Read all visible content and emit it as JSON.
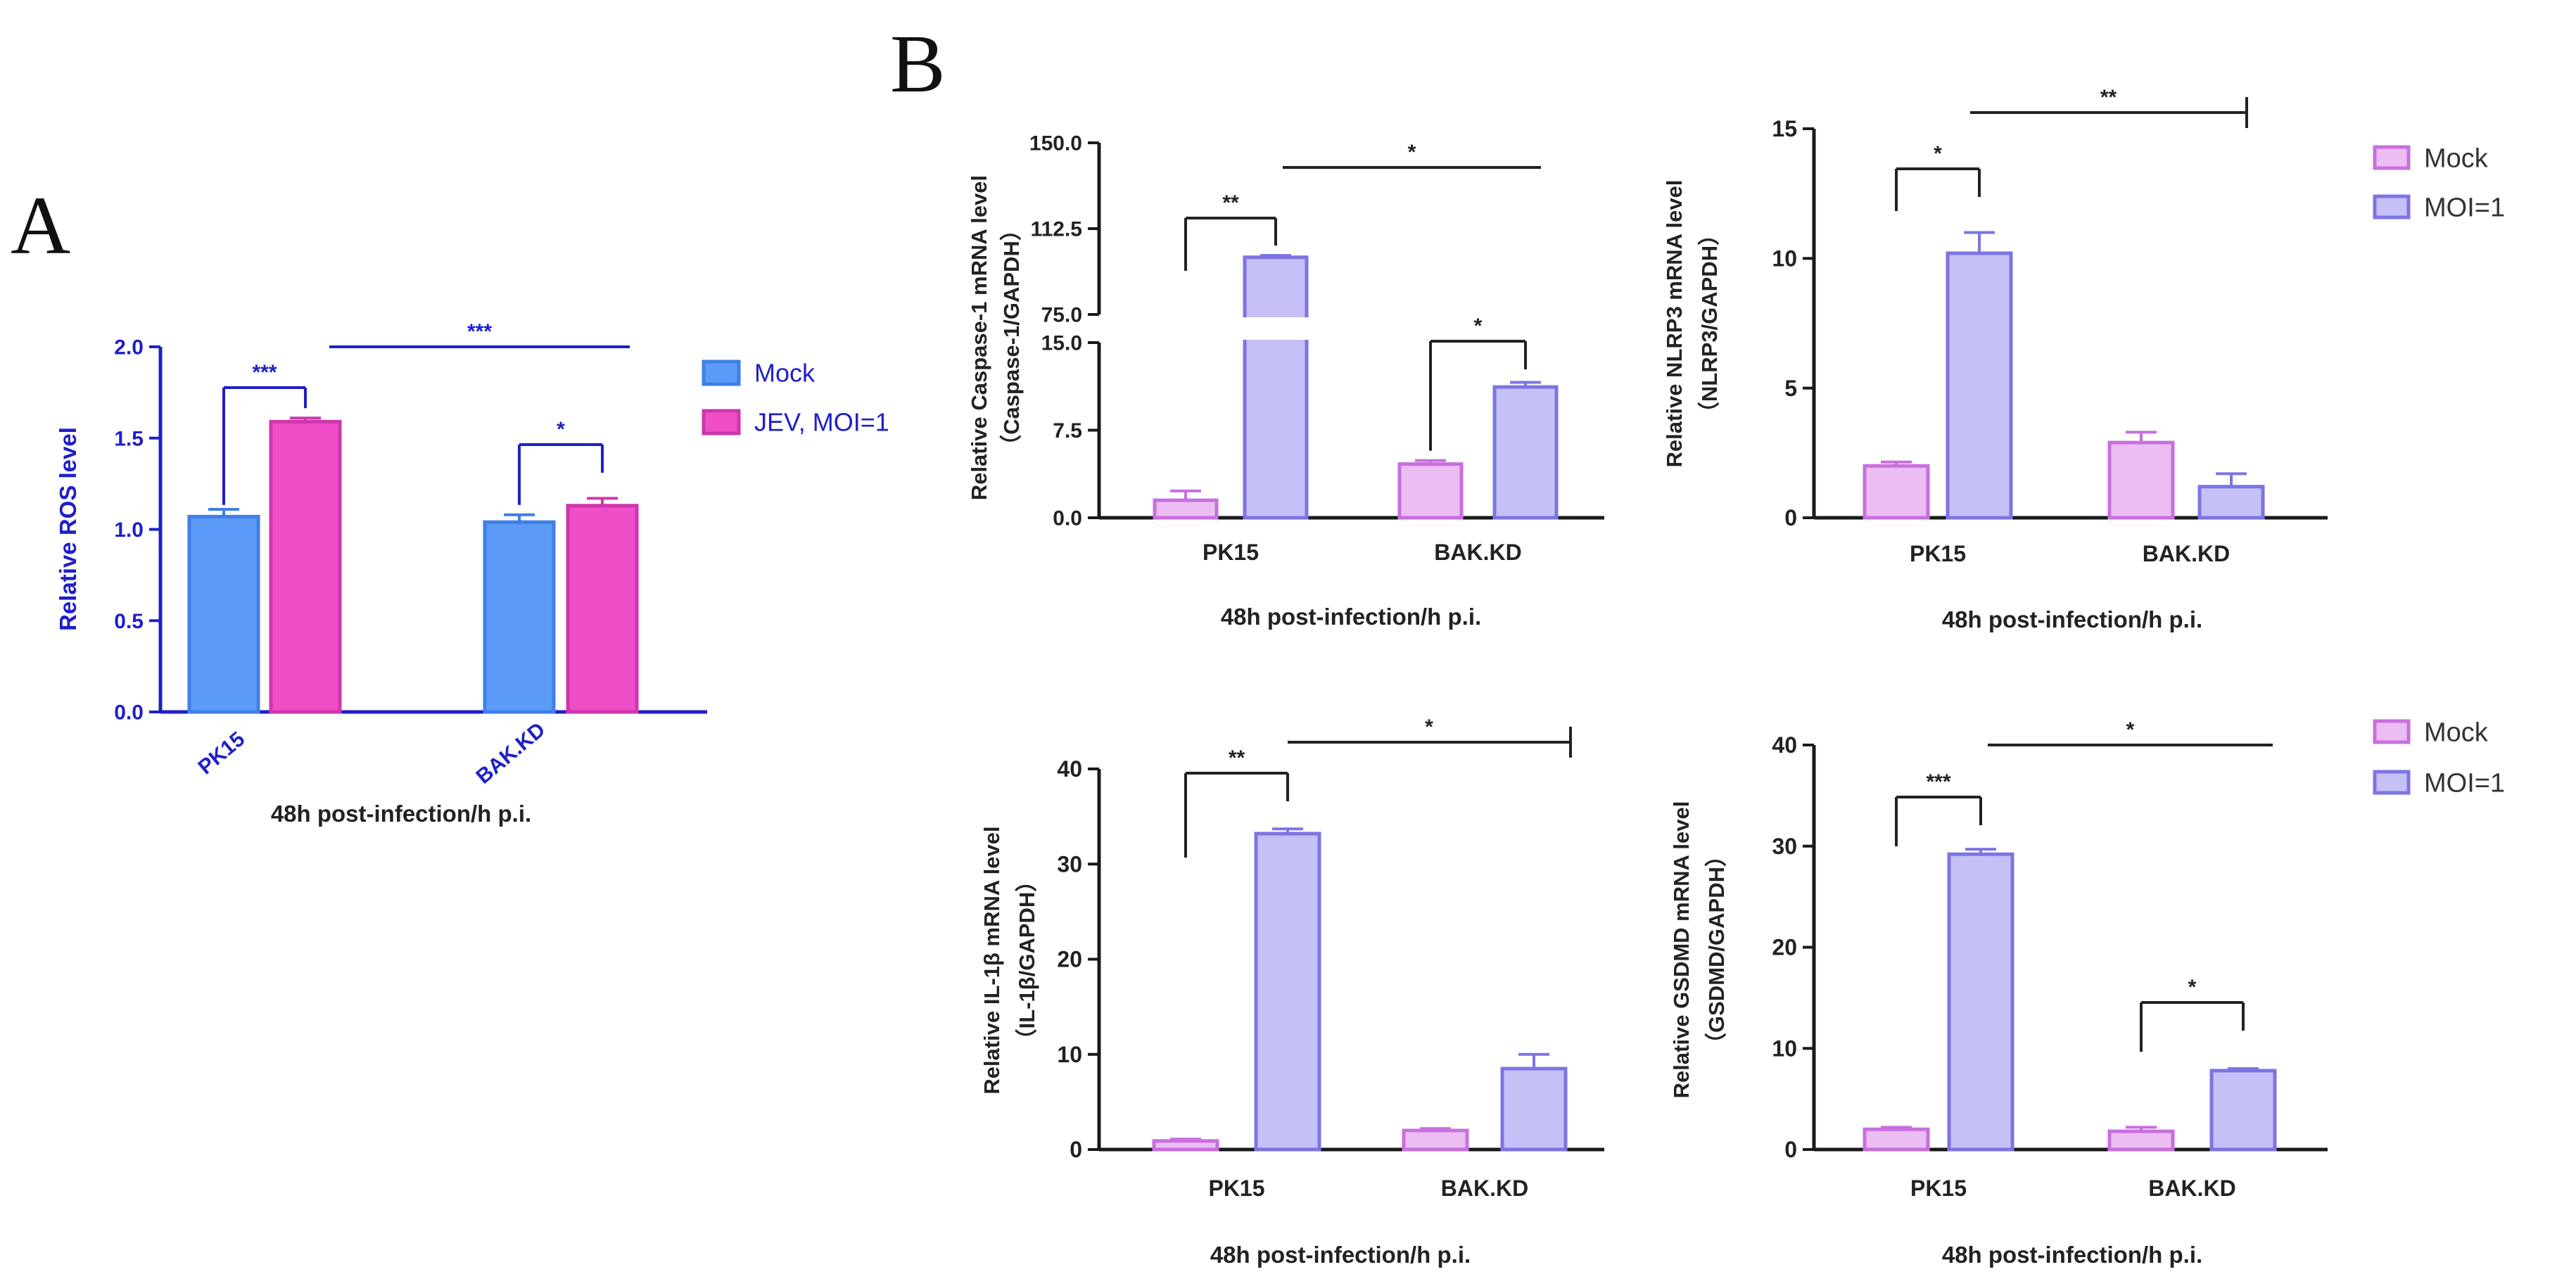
{
  "panel_letters": {
    "a": "A",
    "b": "B"
  },
  "colors": {
    "a_mock_fill": "#5b9bf7",
    "a_mock_stroke": "#3f7fe6",
    "a_jev_fill": "#f04dc9",
    "a_jev_stroke": "#cf36ac",
    "a_axis": "#1f1fc8",
    "b_mock_fill": "#ecbdf3",
    "b_mock_stroke": "#c86fde",
    "b_moi_fill": "#c5c0f6",
    "b_moi_stroke": "#7d74e3",
    "b_axis": "#1a1a1a"
  },
  "chart_data": [
    {
      "id": "ros",
      "type": "bar",
      "panel": "A",
      "categories": [
        "PK15",
        "BAK.KD"
      ],
      "series": [
        {
          "name": "Mock",
          "values": [
            1.07,
            1.04
          ],
          "errors": [
            0.04,
            0.04
          ]
        },
        {
          "name": "JEV, MOI=1",
          "values": [
            1.59,
            1.13
          ],
          "errors": [
            0.02,
            0.04
          ]
        }
      ],
      "ylabel": "Relative ROS level",
      "xlabel": "48h post-infection/h p.i.",
      "ylim": [
        0,
        2.0
      ],
      "yticks": [
        "0.0",
        "0.5",
        "1.0",
        "1.5",
        "2.0"
      ],
      "significance": [
        "***",
        "*",
        "***"
      ],
      "legend": [
        "Mock",
        "JEV, MOI=1"
      ]
    },
    {
      "id": "casp1",
      "type": "bar",
      "panel": "B",
      "categories": [
        "PK15",
        "BAK.KD"
      ],
      "series": [
        {
          "name": "Mock",
          "values": [
            1.5,
            4.6
          ],
          "errors": [
            0.8,
            0.3
          ]
        },
        {
          "name": "MOI=1",
          "values": [
            100.0,
            11.2
          ],
          "errors": [
            0.8,
            0.4
          ]
        }
      ],
      "ylabel_line1": "Relative Caspase-1 mRNA level",
      "ylabel_line2": "（Caspase-1/GAPDH）",
      "xlabel": "48h post-infection/h p.i.",
      "axis_break": {
        "lower_max": 15,
        "upper_min": 75,
        "upper_max": 150
      },
      "yticks": [
        "0.0",
        "7.5",
        "15.0",
        "75.0",
        "112.5",
        "150.0"
      ],
      "significance": [
        "**",
        "*",
        "*"
      ]
    },
    {
      "id": "nlrp3",
      "type": "bar",
      "panel": "B",
      "categories": [
        "PK15",
        "BAK.KD"
      ],
      "series": [
        {
          "name": "Mock",
          "values": [
            2.0,
            2.9
          ],
          "errors": [
            0.15,
            0.4
          ]
        },
        {
          "name": "MOI=1",
          "values": [
            10.2,
            1.2
          ],
          "errors": [
            0.8,
            0.5
          ]
        }
      ],
      "ylabel_line1": "Relative NLRP3 mRNA level",
      "ylabel_line2": "（NLRP3/GAPDH）",
      "xlabel": "48h post-infection/h p.i.",
      "ylim": [
        0,
        15
      ],
      "yticks": [
        "0",
        "5",
        "10",
        "15"
      ],
      "significance": [
        "*",
        "**"
      ],
      "legend": [
        "Mock",
        "MOI=1"
      ]
    },
    {
      "id": "il1b",
      "type": "bar",
      "panel": "B",
      "categories": [
        "PK15",
        "BAK.KD"
      ],
      "series": [
        {
          "name": "Mock",
          "values": [
            0.9,
            2.0
          ],
          "errors": [
            0.2,
            0.2
          ]
        },
        {
          "name": "MOI=1",
          "values": [
            33.2,
            8.5
          ],
          "errors": [
            0.5,
            1.5
          ]
        }
      ],
      "ylabel_line1": "Relative IL-1β mRNA level",
      "ylabel_line2": "（IL-1β/GAPDH）",
      "xlabel": "48h post-infection/h p.i.",
      "ylim": [
        0,
        40
      ],
      "yticks": [
        "0",
        "10",
        "20",
        "30",
        "40"
      ],
      "significance": [
        "**",
        "*"
      ]
    },
    {
      "id": "gsdmd",
      "type": "bar",
      "panel": "B",
      "categories": [
        "PK15",
        "BAK.KD"
      ],
      "series": [
        {
          "name": "Mock",
          "values": [
            2.0,
            1.8
          ],
          "errors": [
            0.2,
            0.4
          ]
        },
        {
          "name": "MOI=1",
          "values": [
            29.2,
            7.8
          ],
          "errors": [
            0.5,
            0.2
          ]
        }
      ],
      "ylabel_line1": "Relative GSDMD mRNA level",
      "ylabel_line2": "（GSDMD/GAPDH）",
      "xlabel": "48h post-infection/h p.i.",
      "ylim": [
        0,
        40
      ],
      "yticks": [
        "0",
        "10",
        "20",
        "30",
        "40"
      ],
      "significance": [
        "***",
        "*",
        "*"
      ],
      "legend": [
        "Mock",
        "MOI=1"
      ]
    }
  ]
}
